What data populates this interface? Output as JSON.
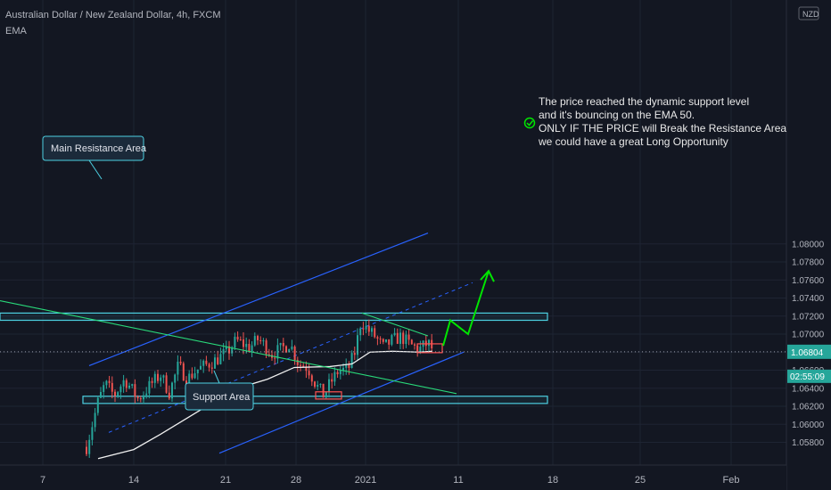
{
  "header": {
    "title": "Australian Dollar / New Zealand Dollar, 4h, FXCM",
    "indicator": "EMA"
  },
  "axis": {
    "currency": "NZD",
    "price_label": "1.06804",
    "countdown": "02:55:09"
  },
  "colors": {
    "background": "#131722",
    "grid": "#1e2433",
    "bull": "#26a69a",
    "bear": "#ef5350",
    "channel": "#2962ff",
    "zone": "#4dd0e1",
    "trendline": "#29d97a",
    "arrow": "#00e600",
    "ema": "#f0f0f0",
    "label_bg": "#1b2a3a",
    "text": "#b2b5be"
  },
  "annotations": {
    "resistance_label": "Main Resistance Area",
    "support_label": "Support Area",
    "check_icon": "check-circle-icon",
    "note_lines": [
      "The price reached the dynamic support level",
      "and it's bouncing on the EMA 50.",
      "ONLY IF THE PRICE will Break the Resistance Area",
      "we could have a great Long Opportunity"
    ]
  },
  "chart_data": {
    "type": "candlestick",
    "symbol": "AUDNZD",
    "timeframe": "4h",
    "x_tick_labels": [
      "7",
      "14",
      "21",
      "28",
      "2021",
      "11",
      "18",
      "25",
      "Feb"
    ],
    "y_tick_labels": [
      "1.05800",
      "1.06000",
      "1.06200",
      "1.06400",
      "1.06600",
      "1.06800",
      "1.07000",
      "1.07200",
      "1.07400",
      "1.07600",
      "1.07800",
      "1.08000"
    ],
    "ylim": [
      1.0568,
      1.0815
    ],
    "current_price": 1.06804,
    "resistance_zone": [
      1.07153,
      1.07233
    ],
    "support_zone": [
      1.06231,
      1.06311
    ],
    "ema_period": 50,
    "ema_anchors": [
      [
        110,
        1.0562
      ],
      [
        150,
        1.0572
      ],
      [
        180,
        1.0589
      ],
      [
        230,
        1.0619
      ],
      [
        270,
        1.0641
      ],
      [
        300,
        1.065
      ],
      [
        330,
        1.0663
      ],
      [
        370,
        1.0664
      ],
      [
        395,
        1.0667
      ],
      [
        415,
        1.068
      ],
      [
        440,
        1.0681
      ],
      [
        470,
        1.068
      ],
      [
        485,
        1.0681
      ]
    ],
    "candle_path": [
      [
        97,
        1.0575
      ],
      [
        110,
        1.0625
      ],
      [
        118,
        1.0645
      ],
      [
        128,
        1.0632
      ],
      [
        140,
        1.065
      ],
      [
        155,
        1.0628
      ],
      [
        170,
        1.0645
      ],
      [
        180,
        1.0655
      ],
      [
        190,
        1.0635
      ],
      [
        200,
        1.0665
      ],
      [
        210,
        1.065
      ],
      [
        220,
        1.066
      ],
      [
        240,
        1.067
      ],
      [
        255,
        1.068
      ],
      [
        265,
        1.0693
      ],
      [
        280,
        1.0685
      ],
      [
        290,
        1.0695
      ],
      [
        305,
        1.0678
      ],
      [
        315,
        1.0683
      ],
      [
        325,
        1.069
      ],
      [
        335,
        1.0667
      ],
      [
        345,
        1.0663
      ],
      [
        355,
        1.0643
      ],
      [
        363,
        1.0632
      ],
      [
        370,
        1.0645
      ],
      [
        380,
        1.066
      ],
      [
        390,
        1.066
      ],
      [
        398,
        1.068
      ],
      [
        405,
        1.0715
      ],
      [
        412,
        1.0705
      ],
      [
        420,
        1.0698
      ],
      [
        430,
        1.0685
      ],
      [
        440,
        1.0693
      ],
      [
        450,
        1.0697
      ],
      [
        460,
        1.0688
      ],
      [
        470,
        1.0683
      ],
      [
        480,
        1.069
      ],
      [
        485,
        1.0683
      ]
    ],
    "channel_upper": [
      [
        100,
        1.0665
      ],
      [
        480,
        1.0812
      ]
    ],
    "channel_mid": [
      [
        122,
        1.0591
      ],
      [
        530,
        1.0757
      ]
    ],
    "channel_lower": [
      [
        246,
        1.0568
      ],
      [
        520,
        1.068
      ]
    ],
    "trendline_long": [
      [
        0,
        1.0737
      ],
      [
        512,
        1.0634
      ]
    ],
    "trendline_short": [
      [
        406,
        1.07233
      ],
      [
        480,
        1.0698
      ]
    ],
    "projection": [
      [
        497,
        1.0687
      ],
      [
        505,
        1.07153
      ],
      [
        525,
        1.07
      ],
      [
        548,
        1.077
      ]
    ],
    "marker_boxes": [
      [
        354,
        383,
        1.0636,
        1.0628
      ],
      [
        468,
        496,
        1.06892,
        1.06794
      ]
    ]
  }
}
